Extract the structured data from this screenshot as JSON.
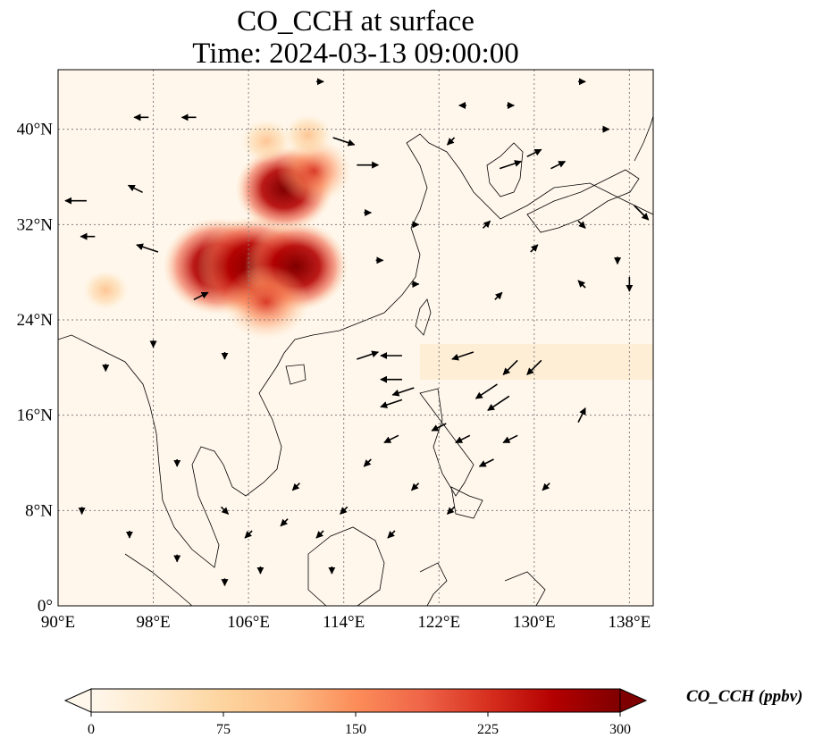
{
  "title": {
    "line1": "CO_CCH at surface",
    "line2": "Time: 2024-03-13 09:00:00"
  },
  "map": {
    "lon_range": [
      90,
      140
    ],
    "lat_range": [
      0,
      45
    ],
    "gridlines": true,
    "gridline_style": "dotted gray",
    "lon_ticks": [
      "90°E",
      "98°E",
      "106°E",
      "114°E",
      "122°E",
      "130°E",
      "138°E"
    ],
    "lon_tick_values": [
      90,
      98,
      106,
      114,
      122,
      130,
      138
    ],
    "lat_ticks": [
      "0°",
      "8°N",
      "16°N",
      "24°N",
      "32°N",
      "40°N"
    ],
    "lat_tick_values": [
      0,
      8,
      16,
      24,
      32,
      40
    ],
    "features": [
      "coastlines",
      "country borders"
    ]
  },
  "colorbar": {
    "label": "CO_CCH (ppbv)",
    "colormap": "OrRd",
    "range": [
      0,
      300
    ],
    "ticks": [
      "0",
      "75",
      "150",
      "225",
      "300"
    ],
    "tick_values": [
      0,
      75,
      150,
      225,
      300
    ],
    "extend": "both",
    "colors": [
      "#fff7ec",
      "#fee8c8",
      "#fdd49e",
      "#fdbb84",
      "#fc8d59",
      "#ef6548",
      "#d7301f",
      "#b30000",
      "#7f0000"
    ]
  },
  "chart_data": {
    "type": "heatmap",
    "variable": "CO_CCH",
    "units": "ppbv",
    "level": "surface",
    "time": "2024-03-13 09:00:00",
    "high_regions": [
      {
        "lon": 103.5,
        "lat": 28.5,
        "value": 290
      },
      {
        "lon": 106.5,
        "lat": 28.5,
        "value": 300
      },
      {
        "lon": 110.0,
        "lat": 28.5,
        "value": 260
      },
      {
        "lon": 109.0,
        "lat": 35.0,
        "value": 240
      },
      {
        "lon": 111.5,
        "lat": 36.5,
        "value": 160
      },
      {
        "lon": 107.5,
        "lat": 25.5,
        "value": 200
      },
      {
        "lon": 107.5,
        "lat": 39.0,
        "value": 80
      },
      {
        "lon": 111.0,
        "lat": 39.5,
        "value": 70
      },
      {
        "lon": 94.0,
        "lat": 26.5,
        "value": 60
      }
    ],
    "wind_vectors": [
      {
        "lon": 91.5,
        "lat": 34,
        "u": -3,
        "v": 0
      },
      {
        "lon": 92.5,
        "lat": 31,
        "u": -2,
        "v": 0
      },
      {
        "lon": 96.5,
        "lat": 35,
        "u": -2,
        "v": 1
      },
      {
        "lon": 97.5,
        "lat": 30,
        "u": -3,
        "v": 1
      },
      {
        "lon": 97.0,
        "lat": 41,
        "u": -2,
        "v": 0
      },
      {
        "lon": 101,
        "lat": 41,
        "u": -2,
        "v": 0
      },
      {
        "lon": 114,
        "lat": 39,
        "u": 3,
        "v": -1
      },
      {
        "lon": 116,
        "lat": 37,
        "u": 3,
        "v": 0
      },
      {
        "lon": 116,
        "lat": 21,
        "u": 3,
        "v": 1
      },
      {
        "lon": 118,
        "lat": 19,
        "u": -3,
        "v": 0
      },
      {
        "lon": 118,
        "lat": 21,
        "u": -3,
        "v": 0
      },
      {
        "lon": 119,
        "lat": 18,
        "u": -3,
        "v": -1
      },
      {
        "lon": 118,
        "lat": 17,
        "u": -3,
        "v": -1
      },
      {
        "lon": 124,
        "lat": 21,
        "u": -3,
        "v": -1
      },
      {
        "lon": 126,
        "lat": 18,
        "u": -3,
        "v": -2
      },
      {
        "lon": 127,
        "lat": 17,
        "u": -3,
        "v": -2
      },
      {
        "lon": 128,
        "lat": 20,
        "u": -2,
        "v": -2
      },
      {
        "lon": 130,
        "lat": 20,
        "u": -2,
        "v": -2
      },
      {
        "lon": 134,
        "lat": 16,
        "u": 1,
        "v": 2
      },
      {
        "lon": 128,
        "lat": 37,
        "u": 3,
        "v": 1
      },
      {
        "lon": 130,
        "lat": 38,
        "u": 2,
        "v": 1
      },
      {
        "lon": 132,
        "lat": 37,
        "u": 2,
        "v": 1
      },
      {
        "lon": 139,
        "lat": 33,
        "u": 2,
        "v": -2
      },
      {
        "lon": 134,
        "lat": 32,
        "u": 1,
        "v": -1
      },
      {
        "lon": 100,
        "lat": 12,
        "u": 0,
        "v": -1
      },
      {
        "lon": 104,
        "lat": 8,
        "u": 1,
        "v": -1
      },
      {
        "lon": 106,
        "lat": 6,
        "u": -1,
        "v": -1
      },
      {
        "lon": 109,
        "lat": 7,
        "u": -1,
        "v": -1
      },
      {
        "lon": 112,
        "lat": 6,
        "u": -1,
        "v": -1
      },
      {
        "lon": 114,
        "lat": 8,
        "u": -1,
        "v": -1
      },
      {
        "lon": 116,
        "lat": 12,
        "u": -1,
        "v": -1
      },
      {
        "lon": 118,
        "lat": 14,
        "u": -2,
        "v": -1
      },
      {
        "lon": 122,
        "lat": 15,
        "u": -2,
        "v": -1
      },
      {
        "lon": 124,
        "lat": 14,
        "u": -2,
        "v": -1
      },
      {
        "lon": 126,
        "lat": 12,
        "u": -2,
        "v": -1
      },
      {
        "lon": 128,
        "lat": 14,
        "u": -2,
        "v": -1
      },
      {
        "lon": 120,
        "lat": 10,
        "u": -1,
        "v": -1
      },
      {
        "lon": 123,
        "lat": 8,
        "u": -1,
        "v": -1
      },
      {
        "lon": 110,
        "lat": 10,
        "u": -1,
        "v": -1
      },
      {
        "lon": 107,
        "lat": 3,
        "u": 0,
        "v": -1
      },
      {
        "lon": 113,
        "lat": 3,
        "u": 0,
        "v": -1
      },
      {
        "lon": 118,
        "lat": 6,
        "u": -1,
        "v": -1
      },
      {
        "lon": 102,
        "lat": 26,
        "u": 2,
        "v": 1
      },
      {
        "lon": 104,
        "lat": 21,
        "u": 0,
        "v": -1
      },
      {
        "lon": 98,
        "lat": 22,
        "u": 0,
        "v": -1
      },
      {
        "lon": 94,
        "lat": 20,
        "u": 0,
        "v": -1
      },
      {
        "lon": 92,
        "lat": 8,
        "u": 0,
        "v": -1
      },
      {
        "lon": 96,
        "lat": 6,
        "u": 0,
        "v": -1
      },
      {
        "lon": 100,
        "lat": 4,
        "u": 0,
        "v": -1
      },
      {
        "lon": 104,
        "lat": 2,
        "u": 0,
        "v": -1
      },
      {
        "lon": 112,
        "lat": 44,
        "u": 1,
        "v": 0
      },
      {
        "lon": 124,
        "lat": 42,
        "u": -1,
        "v": 0
      },
      {
        "lon": 128,
        "lat": 42,
        "u": 1,
        "v": 0
      },
      {
        "lon": 134,
        "lat": 44,
        "u": 1,
        "v": 0
      },
      {
        "lon": 136,
        "lat": 40,
        "u": 1,
        "v": 0
      },
      {
        "lon": 131,
        "lat": 10,
        "u": -1,
        "v": -1
      },
      {
        "lon": 123,
        "lat": 39,
        "u": -1,
        "v": -1
      },
      {
        "lon": 120,
        "lat": 32,
        "u": 1,
        "v": 0
      },
      {
        "lon": 126,
        "lat": 32,
        "u": 1,
        "v": 1
      },
      {
        "lon": 130,
        "lat": 30,
        "u": 1,
        "v": 1
      },
      {
        "lon": 134,
        "lat": 27,
        "u": -1,
        "v": 1
      },
      {
        "lon": 138,
        "lat": 27,
        "u": 0,
        "v": -2
      },
      {
        "lon": 137,
        "lat": 29,
        "u": 0,
        "v": -1
      },
      {
        "lon": 116,
        "lat": 33,
        "u": 1,
        "v": 0
      },
      {
        "lon": 117,
        "lat": 29,
        "u": 1,
        "v": 0
      },
      {
        "lon": 120,
        "lat": 27,
        "u": 1,
        "v": 0
      },
      {
        "lon": 127,
        "lat": 26,
        "u": 1,
        "v": 1
      }
    ]
  }
}
